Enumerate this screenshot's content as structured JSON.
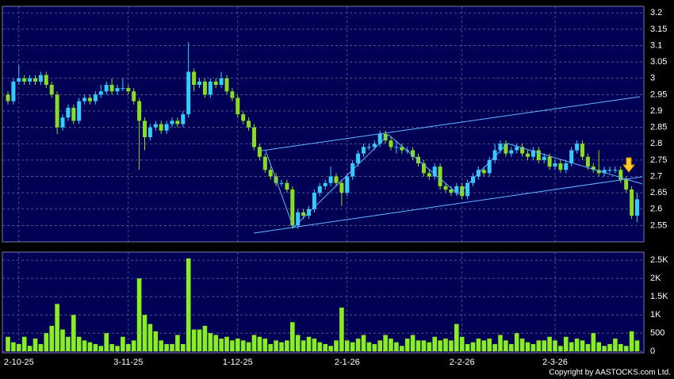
{
  "chart_data": [
    {
      "type": "candlestick",
      "open": [
        2.95,
        2.93,
        2.99,
        3.0,
        2.99,
        3.0,
        2.99,
        3.01,
        2.98,
        2.95,
        2.85,
        2.88,
        2.91,
        2.87,
        2.93,
        2.94,
        2.93,
        2.95,
        2.96,
        2.98,
        2.96,
        2.97,
        2.97,
        2.96,
        2.93,
        2.87,
        2.82,
        2.85,
        2.86,
        2.84,
        2.86,
        2.87,
        2.86,
        2.89,
        3.02,
        2.98,
        2.99,
        2.95,
        2.99,
        2.98,
        3.0,
        2.96,
        2.94,
        2.89,
        2.87,
        2.85,
        2.79,
        2.76,
        2.72,
        2.7,
        2.68,
        2.68,
        2.66,
        2.55,
        2.59,
        2.58,
        2.6,
        2.65,
        2.67,
        2.68,
        2.7,
        2.68,
        2.65,
        2.7,
        2.74,
        2.77,
        2.79,
        2.79,
        2.8,
        2.83,
        2.81,
        2.79,
        2.79,
        2.78,
        2.78,
        2.76,
        2.74,
        2.71,
        2.7,
        2.73,
        2.67,
        2.66,
        2.65,
        2.67,
        2.64,
        2.68,
        2.7,
        2.72,
        2.71,
        2.75,
        2.78,
        2.8,
        2.77,
        2.78,
        2.79,
        2.77,
        2.76,
        2.78,
        2.75,
        2.76,
        2.73,
        2.74,
        2.72,
        2.74,
        2.78,
        2.8,
        2.76,
        2.73,
        2.72,
        2.71,
        2.72,
        2.72,
        2.72,
        2.69,
        2.66,
        2.58
      ],
      "high": [
        2.96,
        3.0,
        3.04,
        3.01,
        3.01,
        3.01,
        3.02,
        3.02,
        2.99,
        2.96,
        2.89,
        2.92,
        2.92,
        2.94,
        2.95,
        2.95,
        2.96,
        2.98,
        2.99,
        3.0,
        2.98,
        3.0,
        2.98,
        2.97,
        2.94,
        2.88,
        2.86,
        2.87,
        2.87,
        2.87,
        2.88,
        2.88,
        2.9,
        3.11,
        3.03,
        3.0,
        3.0,
        3.0,
        3.0,
        3.02,
        3.01,
        2.97,
        2.95,
        2.9,
        2.88,
        2.86,
        2.8,
        2.77,
        2.73,
        2.71,
        2.69,
        2.69,
        2.67,
        2.6,
        2.6,
        2.61,
        2.66,
        2.68,
        2.69,
        2.73,
        2.71,
        2.69,
        2.71,
        2.75,
        2.78,
        2.8,
        2.8,
        2.81,
        2.84,
        2.84,
        2.82,
        2.81,
        2.8,
        2.79,
        2.79,
        2.77,
        2.75,
        2.72,
        2.74,
        2.74,
        2.68,
        2.67,
        2.68,
        2.68,
        2.69,
        2.71,
        2.73,
        2.73,
        2.76,
        2.8,
        2.81,
        2.81,
        2.79,
        2.8,
        2.8,
        2.78,
        2.79,
        2.79,
        2.77,
        2.77,
        2.75,
        2.75,
        2.75,
        2.79,
        2.81,
        2.81,
        2.77,
        2.74,
        2.78,
        2.73,
        2.73,
        2.73,
        2.73,
        2.7,
        2.67,
        2.65
      ],
      "low": [
        2.92,
        2.92,
        2.98,
        2.98,
        2.98,
        2.98,
        2.98,
        2.97,
        2.94,
        2.83,
        2.84,
        2.87,
        2.86,
        2.86,
        2.92,
        2.92,
        2.92,
        2.94,
        2.95,
        2.95,
        2.95,
        2.96,
        2.95,
        2.92,
        2.72,
        2.78,
        2.81,
        2.84,
        2.83,
        2.83,
        2.85,
        2.85,
        2.85,
        2.88,
        2.96,
        2.97,
        2.94,
        2.94,
        2.97,
        2.97,
        2.95,
        2.93,
        2.88,
        2.86,
        2.84,
        2.78,
        2.75,
        2.71,
        2.69,
        2.67,
        2.67,
        2.65,
        2.54,
        2.54,
        2.57,
        2.57,
        2.59,
        2.64,
        2.66,
        2.67,
        2.67,
        2.61,
        2.64,
        2.69,
        2.73,
        2.76,
        2.78,
        2.78,
        2.79,
        2.8,
        2.78,
        2.77,
        2.77,
        2.77,
        2.75,
        2.73,
        2.7,
        2.69,
        2.69,
        2.66,
        2.65,
        2.64,
        2.64,
        2.63,
        2.63,
        2.67,
        2.69,
        2.7,
        2.7,
        2.74,
        2.77,
        2.76,
        2.76,
        2.77,
        2.76,
        2.75,
        2.75,
        2.74,
        2.74,
        2.72,
        2.72,
        2.71,
        2.71,
        2.73,
        2.77,
        2.75,
        2.72,
        2.71,
        2.7,
        2.7,
        2.71,
        2.71,
        2.68,
        2.65,
        2.57,
        2.56
      ],
      "close": [
        2.93,
        2.99,
        3.0,
        2.99,
        3.0,
        2.99,
        3.01,
        2.98,
        2.95,
        2.85,
        2.88,
        2.91,
        2.87,
        2.93,
        2.94,
        2.93,
        2.95,
        2.96,
        2.98,
        2.96,
        2.97,
        2.97,
        2.96,
        2.93,
        2.87,
        2.82,
        2.85,
        2.86,
        2.84,
        2.86,
        2.87,
        2.86,
        2.89,
        3.02,
        2.98,
        2.99,
        2.95,
        2.99,
        2.98,
        3.0,
        2.96,
        2.94,
        2.89,
        2.87,
        2.85,
        2.79,
        2.76,
        2.72,
        2.7,
        2.68,
        2.68,
        2.66,
        2.55,
        2.59,
        2.58,
        2.6,
        2.65,
        2.67,
        2.68,
        2.7,
        2.68,
        2.65,
        2.7,
        2.74,
        2.77,
        2.79,
        2.79,
        2.8,
        2.83,
        2.81,
        2.79,
        2.79,
        2.78,
        2.78,
        2.76,
        2.74,
        2.71,
        2.7,
        2.73,
        2.67,
        2.66,
        2.65,
        2.67,
        2.64,
        2.68,
        2.7,
        2.72,
        2.71,
        2.75,
        2.78,
        2.8,
        2.77,
        2.78,
        2.79,
        2.77,
        2.76,
        2.78,
        2.75,
        2.76,
        2.73,
        2.74,
        2.72,
        2.74,
        2.78,
        2.8,
        2.76,
        2.73,
        2.72,
        2.71,
        2.72,
        2.72,
        2.72,
        2.69,
        2.66,
        2.58,
        2.63
      ],
      "up_color": "#33ccff",
      "down_color": "#88dd22",
      "ylim": [
        2.5,
        3.22
      ],
      "yticks": [
        2.55,
        2.6,
        2.65,
        2.7,
        2.75,
        2.8,
        2.85,
        2.9,
        2.95,
        3,
        3.05,
        3.1,
        3.15,
        3.2
      ],
      "grid": true
    },
    {
      "type": "bar",
      "categories": [
        null,
        null,
        "2-10-25",
        null,
        null,
        null,
        null,
        null,
        null,
        null,
        null,
        null,
        null,
        null,
        null,
        null,
        null,
        null,
        null,
        null,
        null,
        null,
        "3-11-25",
        null,
        null,
        null,
        null,
        null,
        null,
        null,
        null,
        null,
        null,
        null,
        null,
        null,
        null,
        null,
        null,
        null,
        null,
        null,
        "1-12-25",
        null,
        null,
        null,
        null,
        null,
        null,
        null,
        null,
        null,
        null,
        null,
        null,
        null,
        null,
        null,
        null,
        null,
        null,
        null,
        "2-1-26",
        null,
        null,
        null,
        null,
        null,
        null,
        null,
        null,
        null,
        null,
        null,
        null,
        null,
        null,
        null,
        null,
        null,
        null,
        null,
        null,
        "2-2-26",
        null,
        null,
        null,
        null,
        null,
        null,
        null,
        null,
        null,
        null,
        null,
        null,
        null,
        null,
        null,
        null,
        "2-3-26",
        null,
        null,
        null,
        null,
        null,
        null,
        null,
        null,
        null,
        null,
        null,
        null,
        null,
        null,
        null
      ],
      "values": [
        400,
        250,
        200,
        400,
        150,
        350,
        200,
        500,
        700,
        1300,
        600,
        400,
        1000,
        400,
        300,
        250,
        200,
        150,
        500,
        200,
        150,
        400,
        200,
        300,
        2000,
        1000,
        750,
        550,
        300,
        200,
        200,
        450,
        200,
        2550,
        600,
        600,
        700,
        500,
        450,
        350,
        400,
        300,
        350,
        300,
        250,
        450,
        400,
        350,
        200,
        300,
        250,
        300,
        800,
        450,
        300,
        400,
        350,
        250,
        200,
        150,
        300,
        1200,
        300,
        250,
        350,
        450,
        250,
        200,
        300,
        450,
        350,
        250,
        150,
        350,
        450,
        300,
        300,
        250,
        400,
        300,
        350,
        300,
        750,
        400,
        200,
        250,
        350,
        300,
        350,
        200,
        450,
        300,
        200,
        500,
        350,
        250,
        200,
        300,
        300,
        400,
        300,
        150,
        400,
        250,
        350,
        300,
        200,
        500,
        250,
        150,
        200,
        350,
        200,
        150,
        550,
        300
      ],
      "color": "#88ee22",
      "ylim": [
        -40,
        2720
      ],
      "yticks": [
        0,
        500,
        {
          "value": 1000,
          "label": "1K"
        },
        {
          "value": 1500,
          "label": "1.5K"
        },
        {
          "value": 2000,
          "label": "2K"
        },
        {
          "value": 2500,
          "label": "2.5K"
        }
      ],
      "grid": true
    }
  ],
  "copyright": "Copyright by AASTOCKS.com Ltd."
}
